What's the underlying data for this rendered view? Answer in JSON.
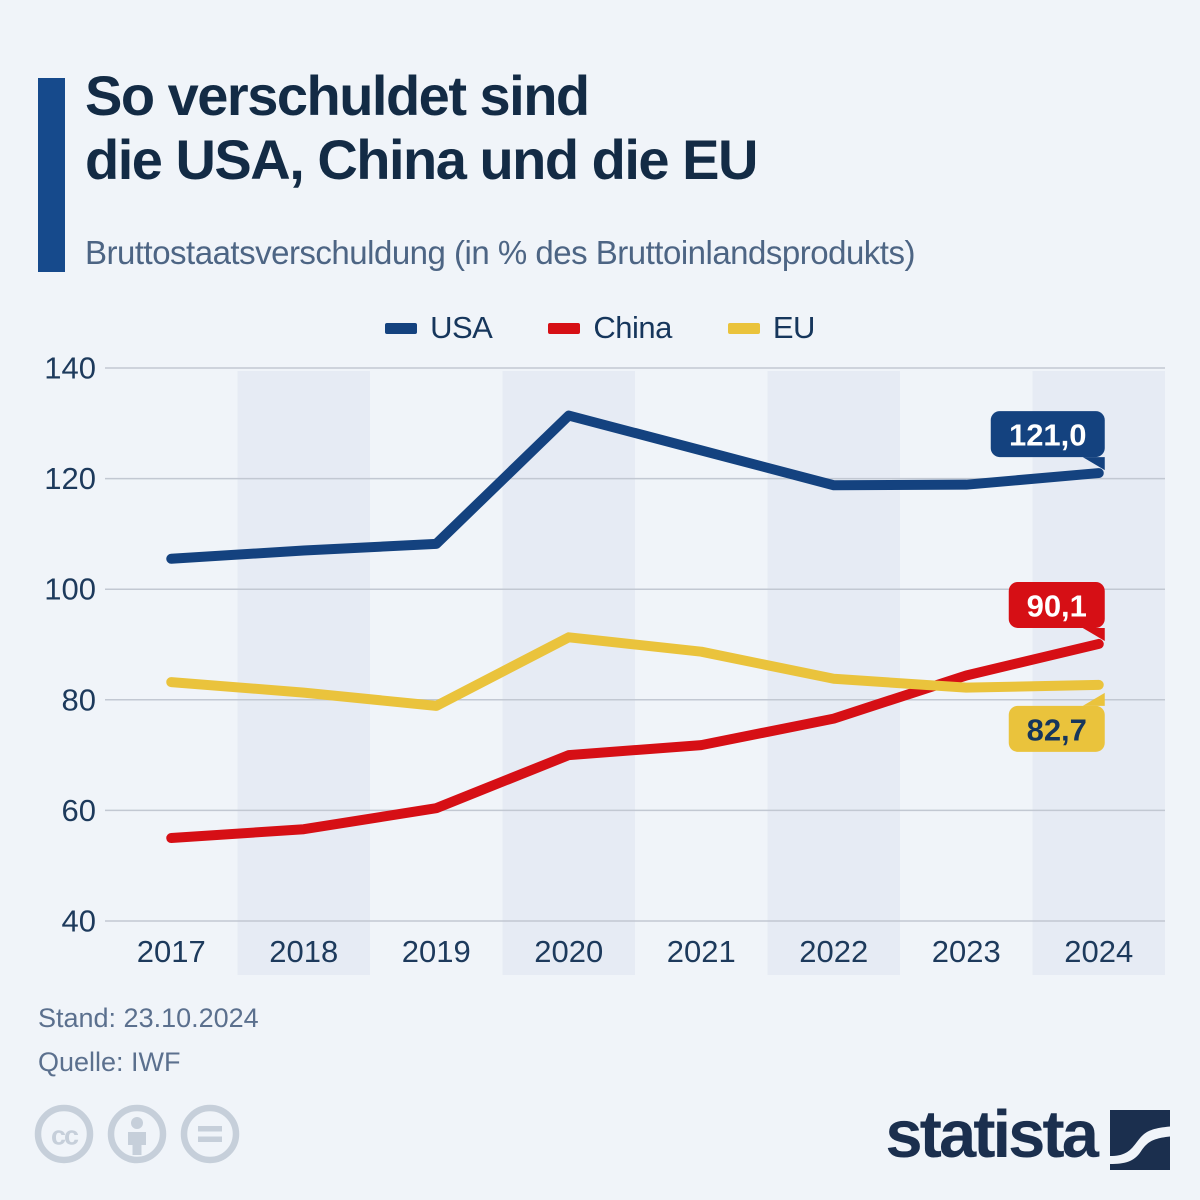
{
  "header": {
    "title_lines": [
      "So verschuldet sind",
      "die USA, China und die EU"
    ],
    "subtitle": "Bruttostaatsverschuldung (in % des Bruttoinlandsprodukts)"
  },
  "chart_data": {
    "type": "line",
    "title": "So verschuldet sind die USA, China und die EU",
    "subtitle": "Bruttostaatsverschuldung (in % des Bruttoinlandsprodukts)",
    "x": [
      "2017",
      "2018",
      "2019",
      "2020",
      "2021",
      "2022",
      "2023",
      "2024"
    ],
    "series": [
      {
        "name": "USA",
        "color": "#14427f",
        "values": [
          105.5,
          107.0,
          108.2,
          131.4,
          125.1,
          118.8,
          118.9,
          121.0
        ],
        "callout": {
          "text": "121,0",
          "position": "above",
          "text_color": "#ffffff"
        }
      },
      {
        "name": "China",
        "color": "#d60f15",
        "values": [
          55.0,
          56.6,
          60.4,
          70.0,
          71.8,
          76.6,
          84.4,
          90.1
        ],
        "callout": {
          "text": "90,1",
          "position": "above",
          "text_color": "#ffffff"
        }
      },
      {
        "name": "EU",
        "color": "#eac33c",
        "values": [
          83.2,
          81.3,
          78.9,
          91.3,
          88.7,
          83.8,
          82.2,
          82.7
        ],
        "callout": {
          "text": "82,7",
          "position": "below",
          "text_color": "#16365c"
        }
      }
    ],
    "ylim": [
      40,
      140
    ],
    "yticks": [
      140,
      120,
      100,
      80,
      60,
      40
    ],
    "grid": true,
    "legend_position": "top",
    "xlabel": "",
    "ylabel": "% des Bruttoinlandsprodukts",
    "shaded_columns": [
      "2018",
      "2020",
      "2022",
      "2024"
    ]
  },
  "footer": {
    "stand": "Stand: 23.10.2024",
    "quelle": "Quelle: IWF"
  },
  "branding": {
    "logo_text": "statista",
    "cc_icons": [
      "cc-icon",
      "cc-by-person-icon",
      "cc-nd-equals-icon"
    ]
  },
  "colors": {
    "background": "#f0f4f9",
    "column_band": "#e6ebf4",
    "gridline": "#c2c8d2",
    "title_text": "#132b45",
    "subtitle_text": "#4d6584",
    "axis_text": "#1d3a5c",
    "footer_text": "#5b708e",
    "cc_gray": "#c6cfda",
    "logo_navy": "#1b2f4e",
    "accent_bar": "#164a8c"
  }
}
